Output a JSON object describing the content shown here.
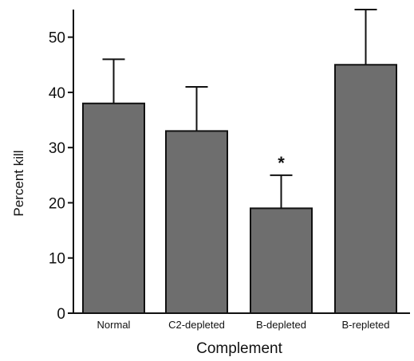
{
  "chart_data": {
    "type": "bar",
    "title": "",
    "xlabel": "Complement",
    "ylabel": "Percent kill",
    "categories": [
      "Normal",
      "C2-depleted",
      "B-depleted",
      "B-repleted"
    ],
    "values": [
      38,
      33,
      19,
      45
    ],
    "error_upper": [
      8,
      8,
      6,
      10
    ],
    "annotations": [
      "",
      "",
      "*",
      ""
    ],
    "ylim": [
      0,
      55
    ],
    "yticks": [
      "0",
      "10",
      "20",
      "30",
      "40",
      "50"
    ],
    "grid": false,
    "bar_color": "#6e6e6e"
  }
}
